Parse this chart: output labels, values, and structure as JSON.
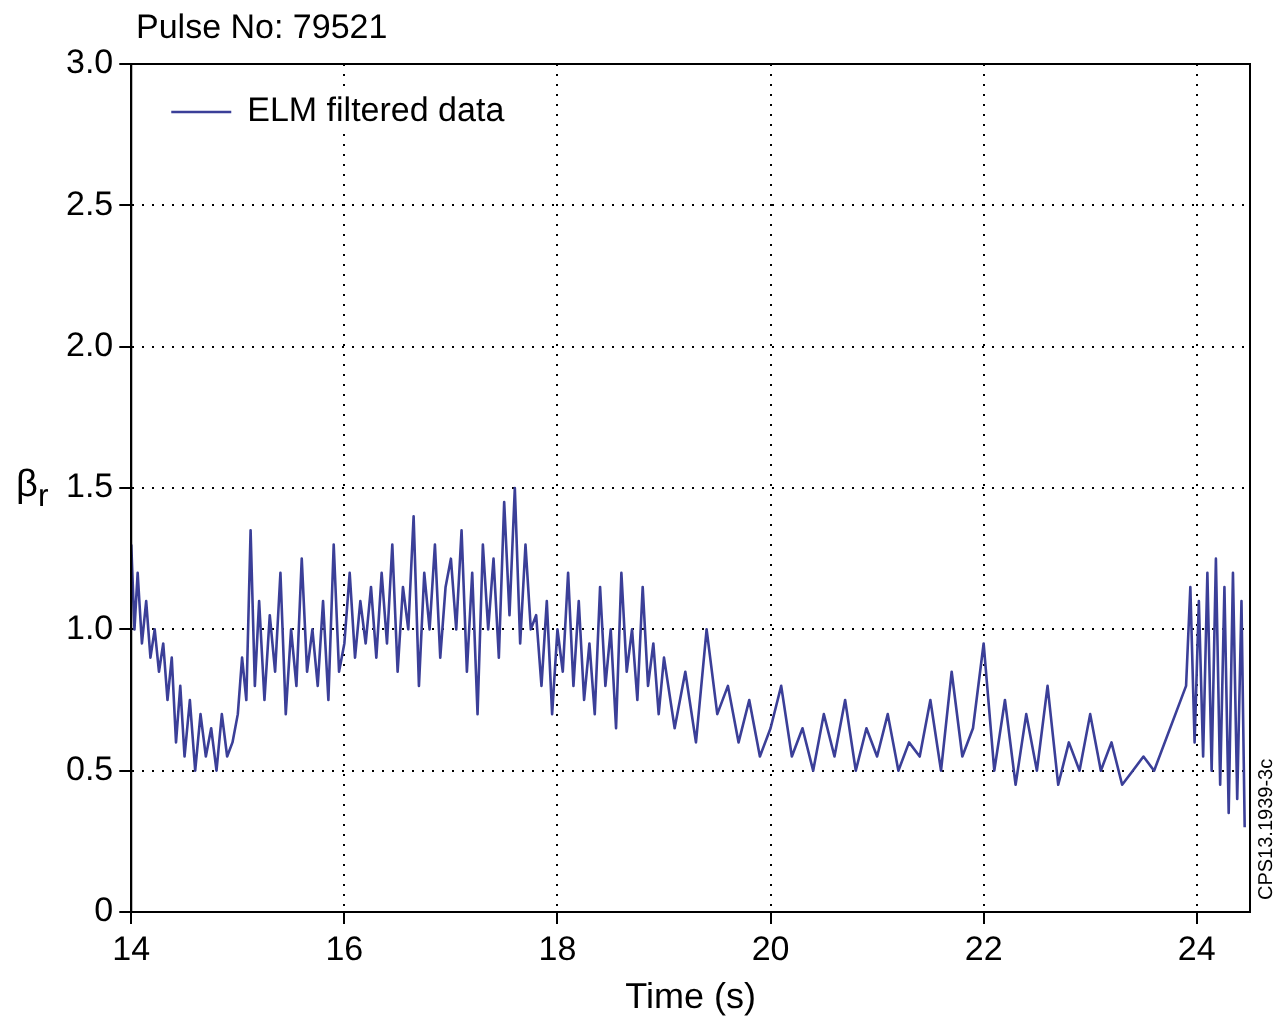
{
  "chart_data": {
    "type": "line",
    "title": "Pulse No: 79521",
    "xlabel": "Time (s)",
    "ylabel": "β$_{r}$",
    "xlim": [
      14,
      24.5
    ],
    "xticks": [
      14,
      16,
      18,
      20,
      22,
      24
    ],
    "ylim": [
      0,
      3
    ],
    "yticks": [
      0,
      {
        "value": 0.5,
        "label": "0.5"
      },
      {
        "value": 1,
        "label": "1.0"
      },
      {
        "value": 1.5,
        "label": "1.5"
      },
      {
        "value": 2,
        "label": "2.0"
      },
      {
        "value": 2.5,
        "label": "2.5"
      },
      {
        "value": 3,
        "label": "3.0"
      }
    ],
    "grid": true,
    "legend": "top left",
    "marker": "none",
    "line_style": "solid",
    "annotations": [
      "CPS13.1939-3c"
    ],
    "series": [
      {
        "name": "ELM filtered data",
        "color": "#3b3f98",
        "x": [
          14.0,
          14.03,
          14.06,
          14.1,
          14.14,
          14.18,
          14.22,
          14.26,
          14.3,
          14.34,
          14.38,
          14.42,
          14.46,
          14.5,
          14.55,
          14.6,
          14.65,
          14.7,
          14.75,
          14.8,
          14.85,
          14.9,
          14.95,
          15.0,
          15.04,
          15.08,
          15.12,
          15.16,
          15.2,
          15.25,
          15.3,
          15.35,
          15.4,
          15.45,
          15.5,
          15.55,
          15.6,
          15.65,
          15.7,
          15.75,
          15.8,
          15.85,
          15.9,
          15.95,
          16.0,
          16.05,
          16.1,
          16.15,
          16.2,
          16.25,
          16.3,
          16.35,
          16.4,
          16.45,
          16.5,
          16.55,
          16.6,
          16.65,
          16.7,
          16.75,
          16.8,
          16.85,
          16.9,
          16.95,
          17.0,
          17.05,
          17.1,
          17.15,
          17.2,
          17.25,
          17.3,
          17.35,
          17.4,
          17.45,
          17.5,
          17.55,
          17.6,
          17.65,
          17.7,
          17.75,
          17.8,
          17.85,
          17.9,
          17.95,
          18.0,
          18.05,
          18.1,
          18.15,
          18.2,
          18.25,
          18.3,
          18.35,
          18.4,
          18.45,
          18.5,
          18.55,
          18.6,
          18.65,
          18.7,
          18.75,
          18.8,
          18.85,
          18.9,
          18.95,
          19.0,
          19.1,
          19.2,
          19.3,
          19.4,
          19.5,
          19.6,
          19.7,
          19.8,
          19.9,
          20.0,
          20.1,
          20.2,
          20.3,
          20.4,
          20.5,
          20.6,
          20.7,
          20.8,
          20.9,
          21.0,
          21.1,
          21.2,
          21.3,
          21.4,
          21.5,
          21.6,
          21.7,
          21.8,
          21.9,
          22.0,
          22.1,
          22.2,
          22.3,
          22.4,
          22.5,
          22.6,
          22.7,
          22.8,
          22.9,
          23.0,
          23.1,
          23.2,
          23.3,
          23.4,
          23.5,
          23.6,
          23.9,
          23.94,
          23.98,
          24.02,
          24.06,
          24.1,
          24.14,
          24.18,
          24.22,
          24.26,
          24.3,
          24.34,
          24.38,
          24.42,
          24.45
        ],
        "values": [
          1.3,
          1.0,
          1.2,
          0.95,
          1.1,
          0.9,
          1.0,
          0.85,
          0.95,
          0.75,
          0.9,
          0.6,
          0.8,
          0.55,
          0.75,
          0.5,
          0.7,
          0.55,
          0.65,
          0.5,
          0.7,
          0.55,
          0.6,
          0.7,
          0.9,
          0.75,
          1.35,
          0.8,
          1.1,
          0.75,
          1.05,
          0.85,
          1.2,
          0.7,
          1.0,
          0.8,
          1.25,
          0.85,
          1.0,
          0.8,
          1.1,
          0.75,
          1.3,
          0.85,
          0.95,
          1.2,
          0.9,
          1.1,
          0.95,
          1.15,
          0.9,
          1.2,
          0.95,
          1.3,
          0.85,
          1.15,
          1.0,
          1.4,
          0.8,
          1.2,
          1.0,
          1.3,
          0.9,
          1.15,
          1.25,
          1.0,
          1.35,
          0.85,
          1.2,
          0.7,
          1.3,
          1.0,
          1.25,
          0.9,
          1.45,
          1.05,
          1.5,
          0.95,
          1.3,
          1.0,
          1.05,
          0.8,
          1.1,
          0.7,
          1.0,
          0.85,
          1.2,
          0.8,
          1.1,
          0.75,
          0.95,
          0.7,
          1.15,
          0.8,
          1.0,
          0.65,
          1.2,
          0.85,
          1.0,
          0.75,
          1.15,
          0.8,
          0.95,
          0.7,
          0.9,
          0.65,
          0.85,
          0.6,
          1.0,
          0.7,
          0.8,
          0.6,
          0.75,
          0.55,
          0.65,
          0.8,
          0.55,
          0.65,
          0.5,
          0.7,
          0.55,
          0.75,
          0.5,
          0.65,
          0.55,
          0.7,
          0.5,
          0.6,
          0.55,
          0.75,
          0.5,
          0.85,
          0.55,
          0.65,
          0.95,
          0.5,
          0.75,
          0.45,
          0.7,
          0.5,
          0.8,
          0.45,
          0.6,
          0.5,
          0.7,
          0.5,
          0.6,
          0.45,
          0.5,
          0.55,
          0.5,
          0.8,
          1.15,
          0.6,
          1.1,
          0.55,
          1.2,
          0.5,
          1.25,
          0.45,
          1.15,
          0.35,
          1.2,
          0.4,
          1.1,
          0.3
        ]
      }
    ]
  }
}
